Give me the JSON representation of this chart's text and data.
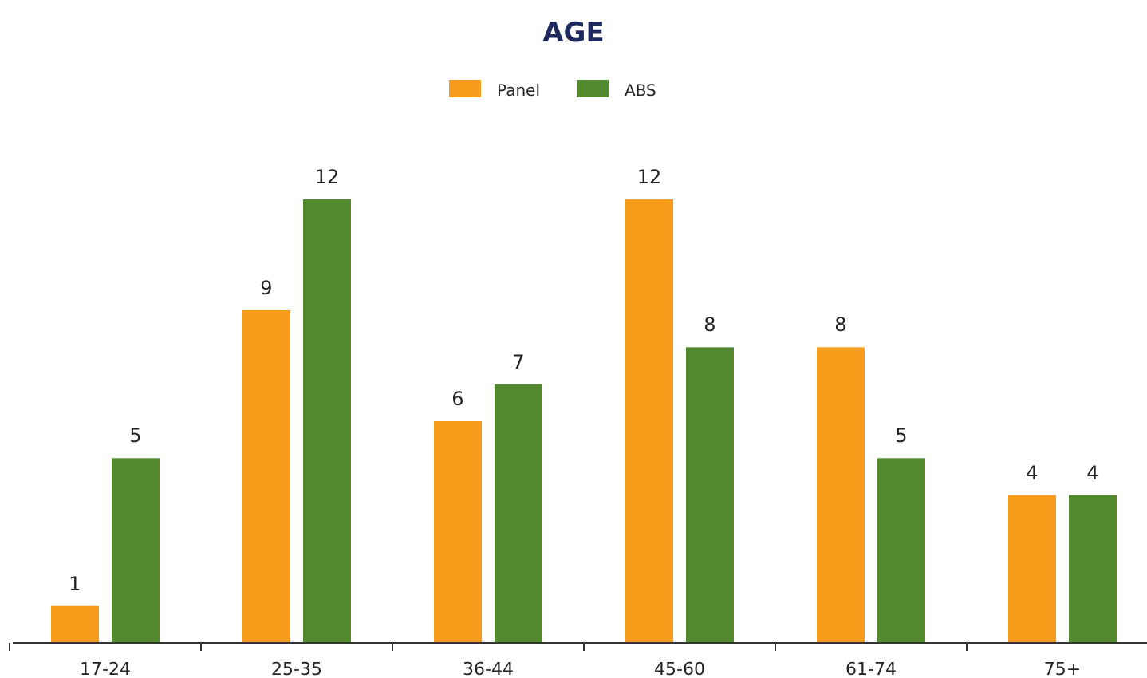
{
  "chart_data": {
    "type": "bar",
    "title": "AGE",
    "categories": [
      "17-24",
      "25-35",
      "36-44",
      "45-60",
      "61-74",
      "75+"
    ],
    "series": [
      {
        "name": "Panel",
        "color": "#f89c1c",
        "values": [
          1,
          9,
          6,
          12,
          8,
          4
        ]
      },
      {
        "name": "ABS",
        "color": "#548a2f",
        "values": [
          5,
          12,
          7,
          8,
          5,
          4
        ]
      }
    ],
    "data_labels": true,
    "legend": "top",
    "grid": false
  }
}
